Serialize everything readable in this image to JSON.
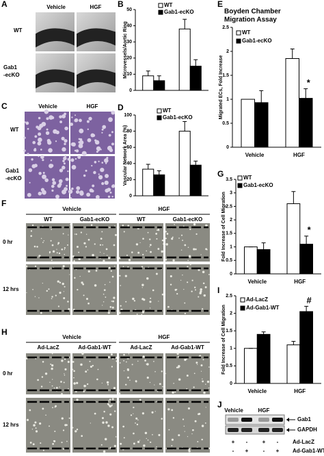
{
  "panel_letters": [
    "A",
    "B",
    "C",
    "D",
    "E",
    "F",
    "G",
    "H",
    "I",
    "J"
  ],
  "panel_a": {
    "columns": [
      "Vehicle",
      "HGF"
    ],
    "rows": [
      [
        "WT"
      ],
      [
        "Gab1",
        "-ecKO"
      ]
    ]
  },
  "panel_c": {
    "columns": [
      "Vehicle",
      "HGF"
    ],
    "rows": [
      [
        "WT"
      ],
      [
        "Gab1",
        "-ecKO"
      ]
    ]
  },
  "panel_f": {
    "groups": [
      "Vehicle",
      "HGF"
    ],
    "columns": [
      "WT",
      "Gab1-ecKO",
      "WT",
      "Gab1-ecKO"
    ],
    "rows": [
      "0 hr",
      "12 hrs"
    ]
  },
  "panel_h": {
    "groups": [
      "Vehicle",
      "HGF"
    ],
    "columns": [
      "Ad-LacZ",
      "Ad-Gab1-WT",
      "Ad-LacZ",
      "Ad-Gab1-WT"
    ],
    "rows": [
      "0 hr",
      "12 hrs"
    ]
  },
  "panel_j": {
    "groups": [
      "Vehicle",
      "HGF"
    ],
    "bands": [
      "Gab1",
      "GAPDH"
    ],
    "rows": [
      {
        "label": "Ad-LacZ",
        "signs": [
          "+",
          "-",
          "+",
          "-"
        ]
      },
      {
        "label": "Ad-Gab1-WT",
        "signs": [
          "-",
          "+",
          "-",
          "+"
        ]
      }
    ]
  },
  "chart_data": [
    {
      "type": "bar",
      "y_label": "Microvessels/Aortic Ring",
      "categories": [
        null,
        null
      ],
      "series": [
        {
          "name": "WT",
          "color": "#ffffff",
          "values": [
            9,
            38
          ],
          "errors": [
            3,
            6
          ]
        },
        {
          "name": "Gab1-ecKO",
          "color": "#000000",
          "values": [
            6,
            15
          ],
          "errors": [
            3,
            4
          ]
        }
      ],
      "ylim": [
        0,
        50
      ],
      "yticks": [
        0,
        10,
        20,
        30,
        40,
        50
      ]
    },
    {
      "type": "bar",
      "y_label": "Vascular Network Area (%)",
      "categories": [
        null,
        null
      ],
      "series": [
        {
          "name": "WT",
          "color": "#ffffff",
          "values": [
            33,
            80
          ],
          "errors": [
            6,
            12
          ]
        },
        {
          "name": "Gab1-ecKO",
          "color": "#000000",
          "values": [
            26,
            38
          ],
          "errors": [
            5,
            5
          ]
        }
      ],
      "ylim": [
        0,
        100
      ],
      "yticks": [
        0,
        20,
        40,
        60,
        80,
        100
      ]
    },
    {
      "type": "bar",
      "title": [
        "Boyden Chamber",
        "Migration Assay"
      ],
      "y_label": "Migrated ECs, Fold Increase",
      "categories": [
        "Vehicle",
        "HGF"
      ],
      "series": [
        {
          "name": "WT",
          "color": "#ffffff",
          "values": [
            1,
            1.85
          ],
          "errors": [
            0,
            0.2
          ]
        },
        {
          "name": "Gab1-ecKO",
          "color": "#000000",
          "values": [
            0.93,
            1.02
          ],
          "errors": [
            0.25,
            0.2
          ]
        }
      ],
      "ylim": [
        0,
        2.5
      ],
      "yticks": [
        0,
        0.5,
        1,
        1.5,
        2,
        2.5
      ],
      "annotation": "*"
    },
    {
      "type": "bar",
      "y_label": "Fold Increase of Cell Migration",
      "categories": [
        "Vehicle",
        "HGF"
      ],
      "series": [
        {
          "name": "WT",
          "color": "#ffffff",
          "values": [
            1,
            2.6
          ],
          "errors": [
            0,
            0.45
          ]
        },
        {
          "name": "Gab1-ecKO",
          "color": "#000000",
          "values": [
            0.9,
            1.1
          ],
          "errors": [
            0.25,
            0.3
          ]
        }
      ],
      "ylim": [
        0,
        3.5
      ],
      "yticks": [
        0,
        0.5,
        1,
        1.5,
        2,
        2.5,
        3,
        3.5
      ],
      "annotation": "*"
    },
    {
      "type": "bar",
      "y_label": "Fold Increase of Cell Migration",
      "categories": [
        "Vehicle",
        "HGF"
      ],
      "series": [
        {
          "name": "Ad-LacZ",
          "color": "#ffffff",
          "values": [
            1,
            1.1
          ],
          "errors": [
            0,
            0.1
          ]
        },
        {
          "name": "Ad-Gab1-WT",
          "color": "#000000",
          "values": [
            1.4,
            2.05
          ],
          "errors": [
            0.07,
            0.15
          ]
        }
      ],
      "ylim": [
        0,
        2.5
      ],
      "yticks": [
        0,
        0.5,
        1,
        1.5,
        2,
        2.5
      ],
      "annotation": "#"
    }
  ]
}
